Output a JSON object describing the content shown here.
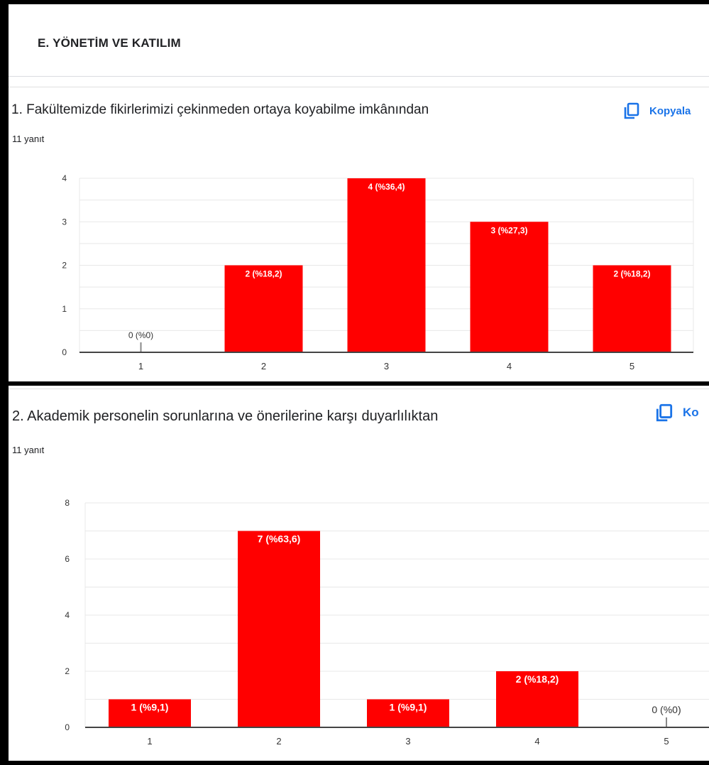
{
  "section": {
    "title": "E. YÖNETİM VE KATILIM"
  },
  "copy_label": "Kopyala",
  "copy_label_cut": "Ko",
  "colors": {
    "bar": "#ff0000",
    "copy": "#1a73e8",
    "grid": "#e8e8e8"
  },
  "questions": [
    {
      "title": "1. Fakültemizde fikirlerimizi çekinmeden ortaya koyabilme imkânından",
      "responses": "11 yanıt"
    },
    {
      "title": "2. Akademik personelin sorunlarına ve önerilerine karşı duyarlılıktan",
      "responses": "11 yanıt"
    }
  ],
  "chart_data": [
    {
      "type": "bar",
      "categories": [
        "1",
        "2",
        "3",
        "4",
        "5"
      ],
      "values": [
        0,
        2,
        4,
        3,
        2
      ],
      "data_labels": [
        "0 (%0)",
        "2 (%18,2)",
        "4 (%36,4)",
        "3 (%27,3)",
        "2 (%18,2)"
      ],
      "yticks": [
        "0",
        "1",
        "2",
        "3",
        "4"
      ],
      "ylim": [
        0,
        4
      ],
      "grid": true
    },
    {
      "type": "bar",
      "categories": [
        "1",
        "2",
        "3",
        "4",
        "5"
      ],
      "values": [
        1,
        7,
        1,
        2,
        0
      ],
      "data_labels": [
        "1 (%9,1)",
        "7 (%63,6)",
        "1 (%9,1)",
        "2 (%18,2)",
        "0 (%0)"
      ],
      "yticks": [
        "0",
        "2",
        "4",
        "6",
        "8"
      ],
      "ylim": [
        0,
        8
      ],
      "grid": true
    }
  ]
}
